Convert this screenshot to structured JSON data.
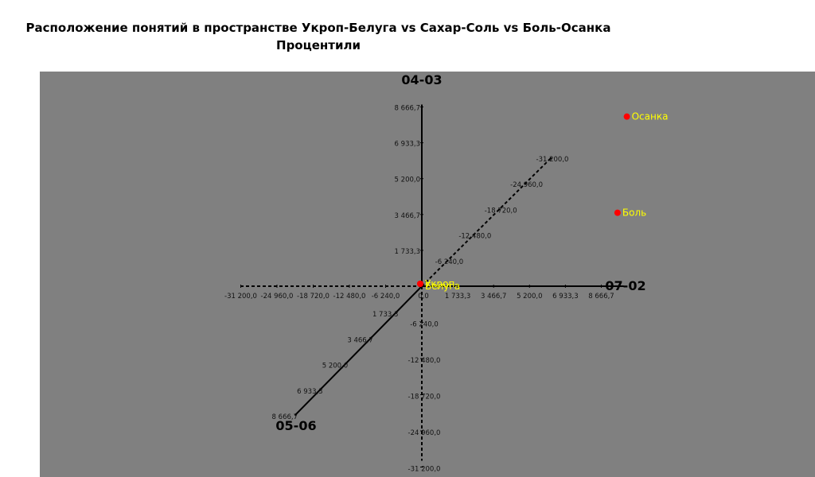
{
  "chart_data": {
    "type": "scatter",
    "title": "Расположение понятий в пространстве Укроп-Белуга vs Сахар-Соль vs Боль-Осанка",
    "subtitle": "Процентили",
    "axes": {
      "x": {
        "name": "07-02",
        "ticks_positive": [
          "1 733,3",
          "3 466,7",
          "5 200,0",
          "6 933,3",
          "8 666,7"
        ],
        "ticks_negative": [
          "-6 240,0",
          "-12 480,0",
          "-18 720,0",
          "-24 960,0",
          "-31 200,0"
        ]
      },
      "y": {
        "name": "04-03",
        "ticks_positive": [
          "1 733,3",
          "3 466,7",
          "5 200,0",
          "6 933,3",
          "8 666,7"
        ],
        "ticks_negative": [
          "-6 240,0",
          "-12 480,0",
          "-18 720,0",
          "-24 960,0",
          "-31 200,0"
        ]
      },
      "z": {
        "name": "05-06",
        "ticks_positive": [
          "1 733,3",
          "3 466,7",
          "5 200,0",
          "6 933,3",
          "8 666,7"
        ],
        "ticks_negative": [
          "-6 240,0",
          "-12 480,0",
          "-18 720,0",
          "-24 960,0",
          "-31 200,0"
        ]
      },
      "origin_label": "0,0"
    },
    "points": [
      {
        "label": "Осанка",
        "x": 9900,
        "y": 8200
      },
      {
        "label": "Боль",
        "x": 9450,
        "y": 3550
      },
      {
        "label": "Укроп",
        "x": 0,
        "y": 0
      },
      {
        "label": "Белуга",
        "x": 0,
        "y": 0
      }
    ],
    "colors": {
      "background": "#808080",
      "point": "#ff0000",
      "point_label": "#ffff00",
      "axis": "#000000"
    }
  }
}
